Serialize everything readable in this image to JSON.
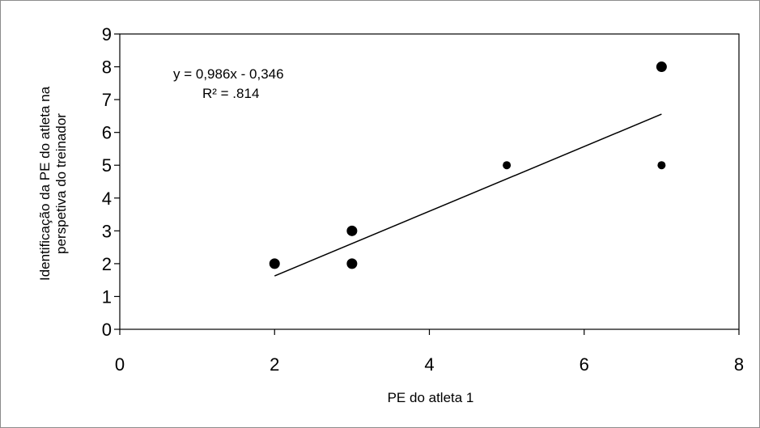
{
  "chart_data": {
    "type": "scatter",
    "title": "",
    "xlabel": "PE do atleta 1",
    "ylabel": "Identificação da PE do atleta na perspetiva do treinador",
    "ylabel_lines": [
      "Identificação da PE do atleta na",
      "perspetiva do treinador"
    ],
    "xlim": [
      0,
      8
    ],
    "ylim": [
      0,
      9
    ],
    "x_ticks": [
      0,
      2,
      4,
      6,
      8
    ],
    "y_ticks": [
      0,
      1,
      2,
      3,
      4,
      5,
      6,
      7,
      8,
      9
    ],
    "grid": false,
    "legend": "none",
    "series": [
      {
        "points": [
          {
            "x": 2,
            "y": 2,
            "size": "large"
          },
          {
            "x": 3,
            "y": 2,
            "size": "large"
          },
          {
            "x": 3,
            "y": 3,
            "size": "large"
          },
          {
            "x": 5,
            "y": 5,
            "size": "small"
          },
          {
            "x": 7,
            "y": 5,
            "size": "small"
          },
          {
            "x": 7,
            "y": 8,
            "size": "large"
          }
        ]
      }
    ],
    "trendline": {
      "type": "linear",
      "slope": 0.986,
      "intercept": -0.346,
      "x_range": [
        2,
        7
      ],
      "equation_label": "y = 0,986x - 0,346",
      "r2_label": "R² =  .814"
    },
    "colors": {
      "marker": "#000000",
      "line": "#000000",
      "background": "#ffffff"
    }
  }
}
